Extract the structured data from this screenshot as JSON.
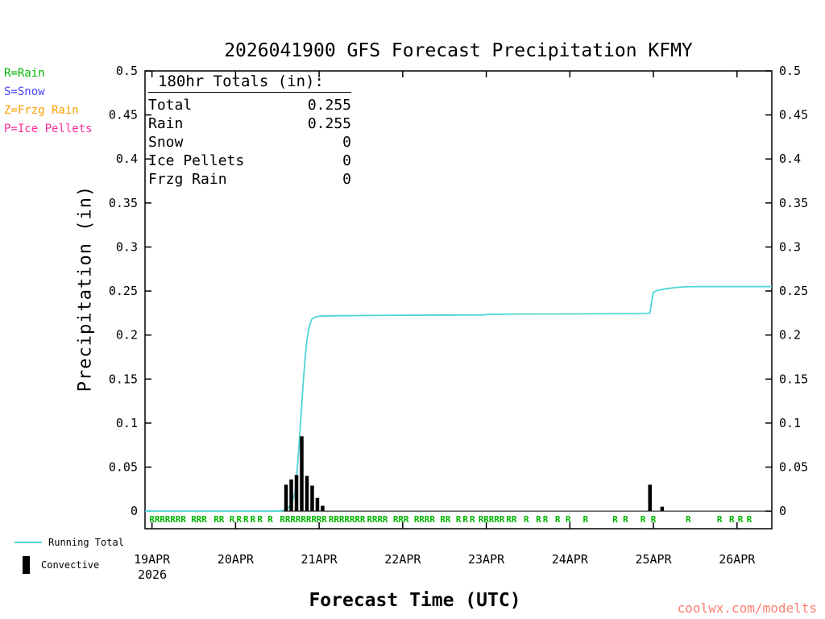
{
  "title": "2026041900 GFS Forecast Precipitation KFMY",
  "watermark": "coolwx.com/modelts",
  "type_legend": [
    {
      "key": "rain",
      "label": "R=Rain",
      "color": "#00b400"
    },
    {
      "key": "snow",
      "label": "S=Snow",
      "color": "#4343ff"
    },
    {
      "key": "frzg-rain",
      "label": "Z=Frzg Rain",
      "color": "#ff9e00"
    },
    {
      "key": "ice-pellets",
      "label": "P=Ice Pellets",
      "color": "#ff2d95"
    }
  ],
  "totals": {
    "heading": "180hr Totals (in):",
    "rows": [
      {
        "label": "Total",
        "value": "0.255"
      },
      {
        "label": "Rain",
        "value": "0.255"
      },
      {
        "label": "Snow",
        "value": "0"
      },
      {
        "label": "Ice Pellets",
        "value": "0"
      },
      {
        "label": "Frzg Rain",
        "value": "0"
      }
    ]
  },
  "axes": {
    "xlabel": "Forecast Time (UTC)",
    "ylabel": "Precipitation (in)",
    "year": "2026"
  },
  "series_legend": {
    "running_total": "Running Total",
    "convective": "Convective"
  },
  "chart_data": {
    "type": "line",
    "x_unit": "forecast hours since 2026-04-19 00 UTC",
    "xlim_hours": [
      -2,
      178
    ],
    "ylim": [
      -0.02,
      0.5
    ],
    "grid": false,
    "legend_position": "bottom-left",
    "xticks": [
      {
        "hour": 0,
        "label": "19APR"
      },
      {
        "hour": 24,
        "label": "20APR"
      },
      {
        "hour": 48,
        "label": "21APR"
      },
      {
        "hour": 72,
        "label": "22APR"
      },
      {
        "hour": 96,
        "label": "23APR"
      },
      {
        "hour": 120,
        "label": "24APR"
      },
      {
        "hour": 144,
        "label": "25APR"
      },
      {
        "hour": 168,
        "label": "26APR"
      }
    ],
    "yticks": [
      {
        "value": 0,
        "label": "0"
      },
      {
        "value": 0.05,
        "label": "0.05"
      },
      {
        "value": 0.1,
        "label": "0.1"
      },
      {
        "value": 0.15,
        "label": "0.15"
      },
      {
        "value": 0.2,
        "label": "0.2"
      },
      {
        "value": 0.25,
        "label": "0.25"
      },
      {
        "value": 0.3,
        "label": "0.3"
      },
      {
        "value": 0.35,
        "label": "0.35"
      },
      {
        "value": 0.4,
        "label": "0.4"
      },
      {
        "value": 0.45,
        "label": "0.45"
      },
      {
        "value": 0.5,
        "label": "0.5"
      }
    ],
    "series": [
      {
        "name": "Running Total",
        "type": "line",
        "color": "#4fd5d5",
        "points": [
          [
            -2,
            0
          ],
          [
            36,
            0
          ],
          [
            38,
            0.001
          ],
          [
            39,
            0.003
          ],
          [
            40,
            0.008
          ],
          [
            41,
            0.02
          ],
          [
            41.5,
            0.038
          ],
          [
            42,
            0.062
          ],
          [
            42.5,
            0.09
          ],
          [
            43,
            0.12
          ],
          [
            43.5,
            0.15
          ],
          [
            44,
            0.175
          ],
          [
            44.5,
            0.194
          ],
          [
            45,
            0.206
          ],
          [
            45.5,
            0.214
          ],
          [
            46,
            0.2185
          ],
          [
            47,
            0.2205
          ],
          [
            48,
            0.2215
          ],
          [
            54,
            0.222
          ],
          [
            72,
            0.2225
          ],
          [
            95,
            0.2228
          ],
          [
            97,
            0.2237
          ],
          [
            120,
            0.224
          ],
          [
            141,
            0.2245
          ],
          [
            143,
            0.2248
          ],
          [
            143.5,
            0.238
          ],
          [
            144,
            0.2485
          ],
          [
            145,
            0.2505
          ],
          [
            147,
            0.2522
          ],
          [
            150,
            0.2538
          ],
          [
            153,
            0.2547
          ],
          [
            156,
            0.255
          ],
          [
            178,
            0.255
          ]
        ]
      },
      {
        "name": "Convective",
        "type": "bar",
        "color": "#000000",
        "points": [
          [
            38.5,
            0.03
          ],
          [
            40,
            0.036
          ],
          [
            41.5,
            0.041
          ],
          [
            43,
            0.085
          ],
          [
            44.5,
            0.04
          ],
          [
            46,
            0.029
          ],
          [
            47.5,
            0.015
          ],
          [
            49,
            0.006
          ],
          [
            143,
            0.03
          ],
          [
            146.5,
            0.005
          ]
        ]
      }
    ],
    "precip_type_markers": {
      "R": [
        0,
        1.5,
        3,
        4.5,
        6,
        7.5,
        9,
        12,
        13.5,
        15,
        18.5,
        20,
        23,
        25,
        27,
        29,
        31,
        34,
        37.5,
        39,
        40.5,
        42,
        43.5,
        45,
        46.5,
        48,
        49.5,
        51.5,
        53,
        54.5,
        56,
        57.5,
        59,
        60.5,
        62.5,
        64,
        65.5,
        67,
        70,
        71.5,
        73,
        76,
        77.5,
        79,
        80.5,
        83.5,
        85,
        88,
        90,
        92,
        94.5,
        96,
        97.5,
        99,
        100.5,
        102.5,
        104,
        107.5,
        111,
        113,
        116.5,
        119.5,
        124.5,
        133,
        136,
        141,
        144,
        154,
        163,
        166.5,
        169,
        171.5
      ],
      "S": [],
      "Z": [],
      "P": []
    }
  }
}
